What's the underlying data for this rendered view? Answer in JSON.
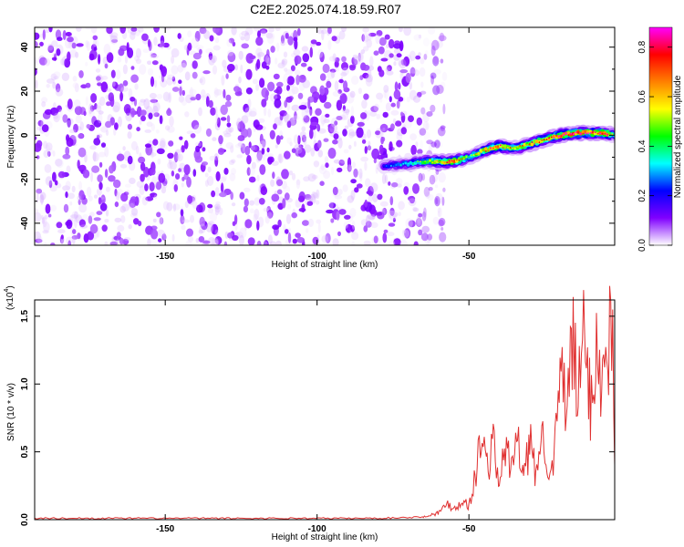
{
  "title": "C2E2.2025.074.18.59.R07",
  "chart_data": [
    {
      "type": "heatmap",
      "name": "spectrogram",
      "xlabel": "Height of straight line (km)",
      "ylabel": "Frequency (Hz)",
      "xlim": [
        -193,
        -2
      ],
      "ylim": [
        -50,
        49
      ],
      "xticks": [
        "-150",
        "-100",
        "-50"
      ],
      "xtick_values": [
        -150,
        -100,
        -50
      ],
      "yticks": [
        "40",
        "20",
        "0",
        "-20",
        "-40"
      ],
      "ytick_values": [
        40,
        20,
        0,
        -20,
        -40
      ],
      "colorscale": [
        "#ffffff",
        "#8000ff",
        "#0000ff",
        "#00ffff",
        "#00ff00",
        "#ffff00",
        "#ff8000",
        "#ff0000",
        "#ff00ff"
      ],
      "noise_region": {
        "x": [
          -193,
          -62
        ],
        "y": [
          -50,
          49
        ],
        "amplitude": [
          0.0,
          0.12
        ]
      },
      "signal_ridge": {
        "x": [
          -78,
          -70,
          -65,
          -60,
          -55,
          -50,
          -45,
          -40,
          -35,
          -30,
          -25,
          -20,
          -15,
          -10,
          -5,
          -2
        ],
        "frequency": [
          -14,
          -13,
          -12,
          -12,
          -12,
          -10,
          -7,
          -5,
          -6,
          -4,
          -2,
          0,
          1,
          1,
          1,
          0
        ],
        "amplitude": [
          0.25,
          0.35,
          0.5,
          0.65,
          0.85,
          0.45,
          0.7,
          0.8,
          0.6,
          0.7,
          0.75,
          0.85,
          0.9,
          0.8,
          0.85,
          0.4
        ]
      },
      "grid": false
    },
    {
      "type": "line",
      "name": "snr",
      "xlabel": "Height of straight line (km)",
      "ylabel": "SNR (10 * v/v)",
      "y_multiplier": "(x10",
      "y_multiplier_exp": "4",
      "xlim": [
        -193,
        -2
      ],
      "ylim": [
        0,
        1.62
      ],
      "xticks": [
        "-150",
        "-100",
        "-50"
      ],
      "xtick_values": [
        -150,
        -100,
        -50
      ],
      "yticks": [
        "0.0",
        "0.5",
        "1.0",
        "1.5"
      ],
      "ytick_values": [
        0,
        0.5,
        1.0,
        1.5
      ],
      "color": "#e03030",
      "x": [
        -193,
        -170,
        -150,
        -120,
        -100,
        -80,
        -65,
        -60,
        -57,
        -55,
        -52,
        -50,
        -48,
        -46,
        -44,
        -42,
        -40,
        -38,
        -36,
        -34,
        -32,
        -30,
        -28,
        -26,
        -24,
        -22,
        -20,
        -18,
        -16,
        -14,
        -12,
        -10,
        -8,
        -6,
        -4,
        -3,
        -2
      ],
      "values": [
        0.01,
        0.01,
        0.01,
        0.01,
        0.01,
        0.01,
        0.02,
        0.05,
        0.12,
        0.08,
        0.14,
        0.1,
        0.3,
        0.62,
        0.4,
        0.55,
        0.28,
        0.52,
        0.38,
        0.6,
        0.3,
        0.56,
        0.34,
        0.62,
        0.45,
        0.4,
        1.08,
        0.8,
        1.3,
        0.9,
        1.38,
        0.85,
        1.35,
        0.95,
        1.22,
        1.62,
        0.4
      ],
      "grid": false
    }
  ],
  "colorbar": {
    "label": "Normalized spectral amplitude",
    "ticks": [
      "0.0",
      "0.2",
      "0.4",
      "0.6",
      "0.8"
    ],
    "tick_values": [
      0,
      0.2,
      0.4,
      0.6,
      0.8
    ],
    "range": [
      0,
      0.88
    ]
  }
}
